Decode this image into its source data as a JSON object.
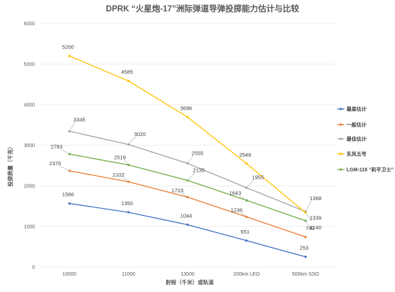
{
  "chart_data": {
    "type": "line",
    "title": "DPRK “火星炮-17”洲际弹道导弹投掷能力估计与比较",
    "xlabel": "射程（千米）或轨道",
    "ylabel": "投掷质量（千克）",
    "categories": [
      "10000",
      "11000",
      "13000",
      "200km LEO",
      "500km SSO"
    ],
    "ylim": [
      0,
      6000
    ],
    "yticks": [
      0,
      1000,
      2000,
      3000,
      4000,
      5000,
      6000
    ],
    "grid": "horizontal",
    "legend_position": "right",
    "series": [
      {
        "name": "最差估计",
        "color": "#4472c4",
        "values": [
          1566,
          1350,
          1044,
          651,
          253
        ]
      },
      {
        "name": "一般估计",
        "color": "#ed7d31",
        "values": [
          2370,
          2102,
          1723,
          1236,
          740
        ]
      },
      {
        "name": "最佳估计",
        "color": "#a5a5a5",
        "values": [
          3345,
          3020,
          2555,
          1955,
          1368
        ]
      },
      {
        "name": "东风五号",
        "color": "#ffc000",
        "values": [
          5200,
          4585,
          3696,
          2548,
          1339
        ]
      },
      {
        "name": "LGM-118 “和平卫士”",
        "color": "#70ad47",
        "values": [
          2783,
          2516,
          2135,
          1643,
          1140
        ]
      }
    ]
  }
}
